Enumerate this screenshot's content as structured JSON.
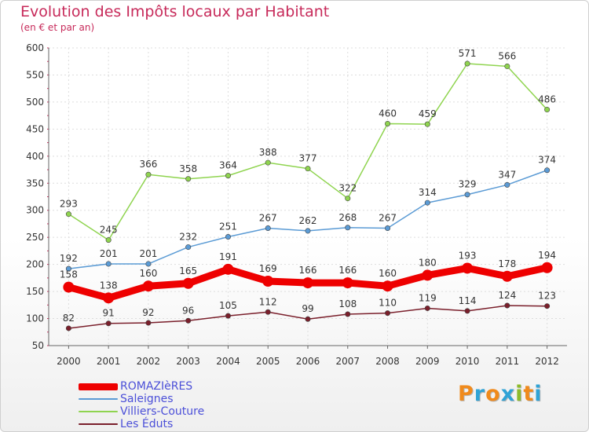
{
  "header": {
    "title": "Evolution des Impôts locaux par Habitant",
    "subtitle": "(en € et par an)"
  },
  "logo": {
    "text": "Proxiti",
    "letters": [
      {
        "char": "P",
        "color": "#f08a1c"
      },
      {
        "char": "r",
        "color": "#2fa3d6"
      },
      {
        "char": "o",
        "color": "#f08a1c"
      },
      {
        "char": "x",
        "color": "#2fa3d6"
      },
      {
        "char": "i",
        "color": "#8dbb2a"
      },
      {
        "char": "t",
        "color": "#f08a1c"
      },
      {
        "char": "i",
        "color": "#2fa3d6"
      }
    ]
  },
  "colors": {
    "title": "#c72a5a",
    "axis": "#666666",
    "gridline": "#dddddd",
    "tick_mark": "#c72a5a",
    "legend_text": "#4b4fd8"
  },
  "chart_data": {
    "type": "line",
    "title": "Evolution des Impôts locaux par Habitant",
    "subtitle": "(en € et par an)",
    "x": [
      "2000",
      "2001",
      "2002",
      "2003",
      "2004",
      "2005",
      "2006",
      "2007",
      "2008",
      "2009",
      "2010",
      "2011",
      "2012"
    ],
    "ylim": [
      50,
      600
    ],
    "yticks": [
      50,
      100,
      150,
      200,
      250,
      300,
      350,
      400,
      450,
      500,
      550,
      600
    ],
    "grid": true,
    "legend_position": "bottom-left",
    "series": [
      {
        "name": "ROMAZIèRES",
        "color": "#ee0000",
        "emphasis": "thick",
        "values": [
          158,
          138,
          160,
          165,
          191,
          169,
          166,
          166,
          160,
          180,
          193,
          178,
          194
        ]
      },
      {
        "name": "Saleignes",
        "color": "#5b9bd5",
        "emphasis": "normal",
        "values": [
          192,
          201,
          201,
          232,
          251,
          267,
          262,
          268,
          267,
          314,
          329,
          347,
          374
        ]
      },
      {
        "name": "Villiers-Couture",
        "color": "#8fd44f",
        "emphasis": "normal",
        "values": [
          293,
          245,
          366,
          358,
          364,
          388,
          377,
          322,
          460,
          459,
          571,
          566,
          486
        ]
      },
      {
        "name": "Les Éduts",
        "color": "#7a1f2b",
        "emphasis": "normal",
        "values": [
          82,
          91,
          92,
          96,
          105,
          112,
          99,
          108,
          110,
          119,
          114,
          124,
          123
        ]
      }
    ]
  }
}
